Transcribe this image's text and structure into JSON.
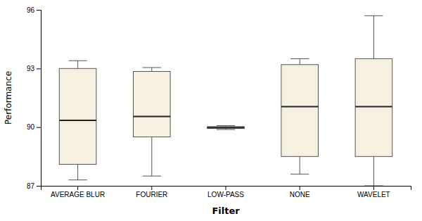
{
  "chart_data": {
    "type": "box",
    "categories": [
      "AVERAGE BLUR",
      "FOURIER",
      "LOW-PASS",
      "NONE",
      "WAVELET"
    ],
    "boxes": [
      {
        "whislo": 87.3,
        "q1": 88.1,
        "med": 90.35,
        "q3": 93.0,
        "whishi": 93.4
      },
      {
        "whislo": 87.5,
        "q1": 89.5,
        "med": 90.55,
        "q3": 92.85,
        "whishi": 93.05
      },
      {
        "whislo": 89.88,
        "q1": 89.93,
        "med": 89.98,
        "q3": 90.03,
        "whishi": 90.08
      },
      {
        "whislo": 87.6,
        "q1": 88.5,
        "med": 91.05,
        "q3": 93.2,
        "whishi": 93.5
      },
      {
        "whislo": 87.0,
        "q1": 88.5,
        "med": 91.05,
        "q3": 93.5,
        "whishi": 95.7
      }
    ],
    "color": "#f5f0e0",
    "xlabel": "Filter",
    "ylabel": "Performance",
    "ylim": [
      87,
      96
    ],
    "yticks": [
      87,
      90,
      93,
      96
    ]
  }
}
